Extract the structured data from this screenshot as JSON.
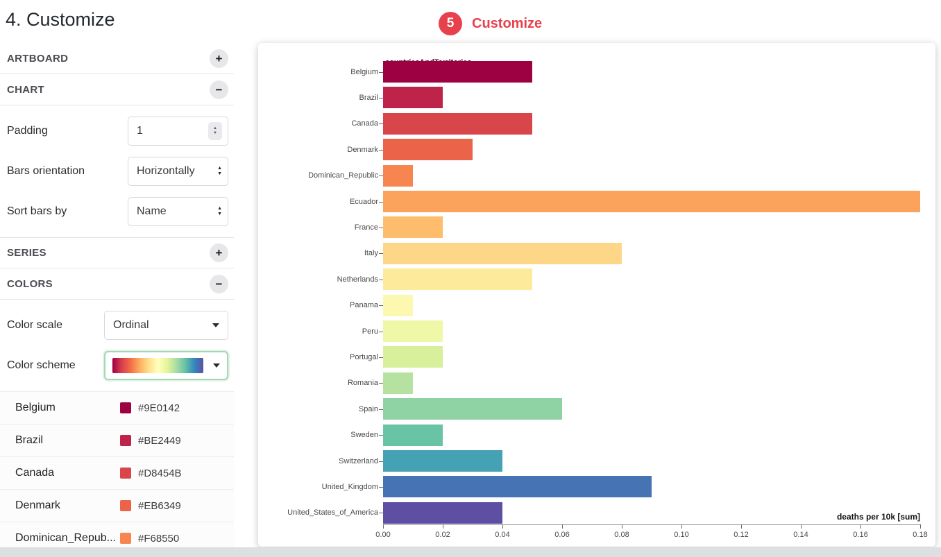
{
  "page": {
    "title": "4. Customize"
  },
  "annotation": {
    "badge": "5",
    "label": "Customize",
    "color": "#e8414e"
  },
  "sidebar": {
    "sections": [
      {
        "label": "ARTBOARD",
        "toggle": "+"
      },
      {
        "label": "CHART",
        "toggle": "−"
      },
      {
        "label": "SERIES",
        "toggle": "+"
      },
      {
        "label": "COLORS",
        "toggle": "−"
      }
    ],
    "chart_controls": {
      "padding": {
        "label": "Padding",
        "value": "1"
      },
      "orientation": {
        "label": "Bars orientation",
        "value": "Horizontally"
      },
      "sort": {
        "label": "Sort bars by",
        "value": "Name"
      }
    },
    "color_controls": {
      "scale": {
        "label": "Color scale",
        "value": "Ordinal"
      },
      "scheme": {
        "label": "Color scheme",
        "gradient": [
          "#9E0142",
          "#D53E4F",
          "#F46D43",
          "#FDAE61",
          "#FEE08B",
          "#FFFFBF",
          "#E6F598",
          "#ABDDA4",
          "#66C2A5",
          "#3288BD",
          "#5E4FA2"
        ]
      }
    },
    "color_list": [
      {
        "name": "Belgium",
        "hex": "#9E0142"
      },
      {
        "name": "Brazil",
        "hex": "#BE2449"
      },
      {
        "name": "Canada",
        "hex": "#D8454B"
      },
      {
        "name": "Denmark",
        "hex": "#EB6349"
      },
      {
        "name": "Dominican_Repub...",
        "hex": "#F68550"
      }
    ]
  },
  "chart_data": {
    "type": "bar",
    "orientation": "horizontal",
    "legend_title": "countriesAndTerritories",
    "categories": [
      "Belgium",
      "Brazil",
      "Canada",
      "Denmark",
      "Dominican_Republic",
      "Ecuador",
      "France",
      "Italy",
      "Netherlands",
      "Panama",
      "Peru",
      "Portugal",
      "Romania",
      "Spain",
      "Sweden",
      "Switzerland",
      "United_Kingdom",
      "United_States_of_America"
    ],
    "values": [
      0.05,
      0.02,
      0.05,
      0.03,
      0.01,
      0.18,
      0.02,
      0.08,
      0.05,
      0.01,
      0.02,
      0.02,
      0.01,
      0.06,
      0.02,
      0.04,
      0.09,
      0.04
    ],
    "colors": [
      "#9E0142",
      "#BE2449",
      "#D8454B",
      "#EB6349",
      "#F68550",
      "#FBA35C",
      "#FDBD6D",
      "#FED687",
      "#FEEA9B",
      "#FDF8B0",
      "#EFF8A6",
      "#D8EF9B",
      "#B5E1A1",
      "#8FD2A4",
      "#69C3A5",
      "#45A2B4",
      "#4573B3",
      "#5E4FA2"
    ],
    "xlabel": "deaths per 10k [sum]",
    "xlim": [
      0,
      0.18
    ],
    "xticks": [
      "0.00",
      "0.02",
      "0.04",
      "0.06",
      "0.08",
      "0.10",
      "0.12",
      "0.14",
      "0.16",
      "0.18"
    ],
    "grid": false,
    "legend_position": "top-left"
  }
}
